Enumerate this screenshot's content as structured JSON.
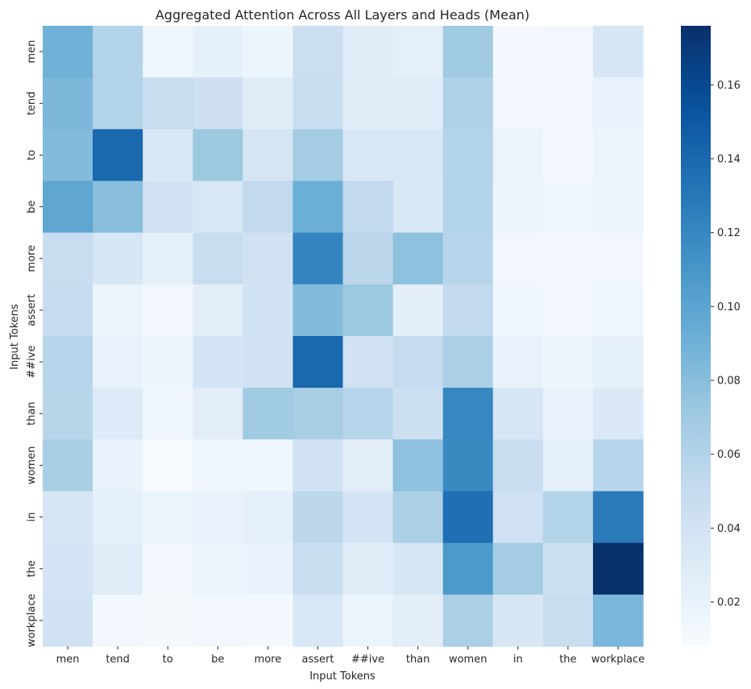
{
  "chart_data": {
    "type": "heatmap",
    "title": "Aggregated Attention Across All Layers and Heads (Mean)",
    "xlabel": "Input Tokens",
    "ylabel": "Input Tokens",
    "x_tokens": [
      "men",
      "tend",
      "to",
      "be",
      "more",
      "assert",
      "##ive",
      "than",
      "women",
      "in",
      "the",
      "workplace"
    ],
    "y_tokens": [
      "men",
      "tend",
      "to",
      "be",
      "more",
      "assert",
      "##ive",
      "than",
      "women",
      "in",
      "the",
      "workplace"
    ],
    "colormap": "Blues",
    "vmin": 0.008,
    "vmax": 0.176,
    "colorbar_ticks": [
      0.02,
      0.04,
      0.06,
      0.08,
      0.1,
      0.12,
      0.14,
      0.16
    ],
    "colorbar_tick_labels": [
      "0.02",
      "0.04",
      "0.06",
      "0.08",
      "0.10",
      "0.12",
      "0.14",
      "0.16"
    ],
    "values": [
      [
        0.09,
        0.06,
        0.015,
        0.022,
        0.016,
        0.045,
        0.028,
        0.024,
        0.07,
        0.012,
        0.013,
        0.035
      ],
      [
        0.085,
        0.06,
        0.048,
        0.043,
        0.028,
        0.048,
        0.028,
        0.028,
        0.062,
        0.013,
        0.013,
        0.02
      ],
      [
        0.082,
        0.14,
        0.033,
        0.072,
        0.037,
        0.068,
        0.034,
        0.034,
        0.06,
        0.018,
        0.012,
        0.016
      ],
      [
        0.098,
        0.08,
        0.04,
        0.034,
        0.052,
        0.092,
        0.052,
        0.033,
        0.06,
        0.017,
        0.015,
        0.017
      ],
      [
        0.048,
        0.035,
        0.024,
        0.048,
        0.04,
        0.122,
        0.055,
        0.078,
        0.058,
        0.013,
        0.011,
        0.013
      ],
      [
        0.05,
        0.018,
        0.013,
        0.026,
        0.04,
        0.082,
        0.072,
        0.025,
        0.052,
        0.015,
        0.013,
        0.014
      ],
      [
        0.058,
        0.02,
        0.016,
        0.038,
        0.04,
        0.14,
        0.04,
        0.05,
        0.064,
        0.02,
        0.016,
        0.022
      ],
      [
        0.057,
        0.03,
        0.015,
        0.026,
        0.07,
        0.066,
        0.058,
        0.044,
        0.12,
        0.035,
        0.02,
        0.032
      ],
      [
        0.066,
        0.02,
        0.009,
        0.014,
        0.015,
        0.04,
        0.026,
        0.078,
        0.118,
        0.047,
        0.022,
        0.058
      ],
      [
        0.036,
        0.022,
        0.016,
        0.02,
        0.022,
        0.055,
        0.038,
        0.064,
        0.135,
        0.042,
        0.06,
        0.128
      ],
      [
        0.038,
        0.028,
        0.013,
        0.018,
        0.019,
        0.048,
        0.027,
        0.036,
        0.108,
        0.068,
        0.044,
        0.176
      ],
      [
        0.04,
        0.013,
        0.01,
        0.013,
        0.012,
        0.034,
        0.018,
        0.026,
        0.064,
        0.036,
        0.047,
        0.086
      ]
    ]
  }
}
